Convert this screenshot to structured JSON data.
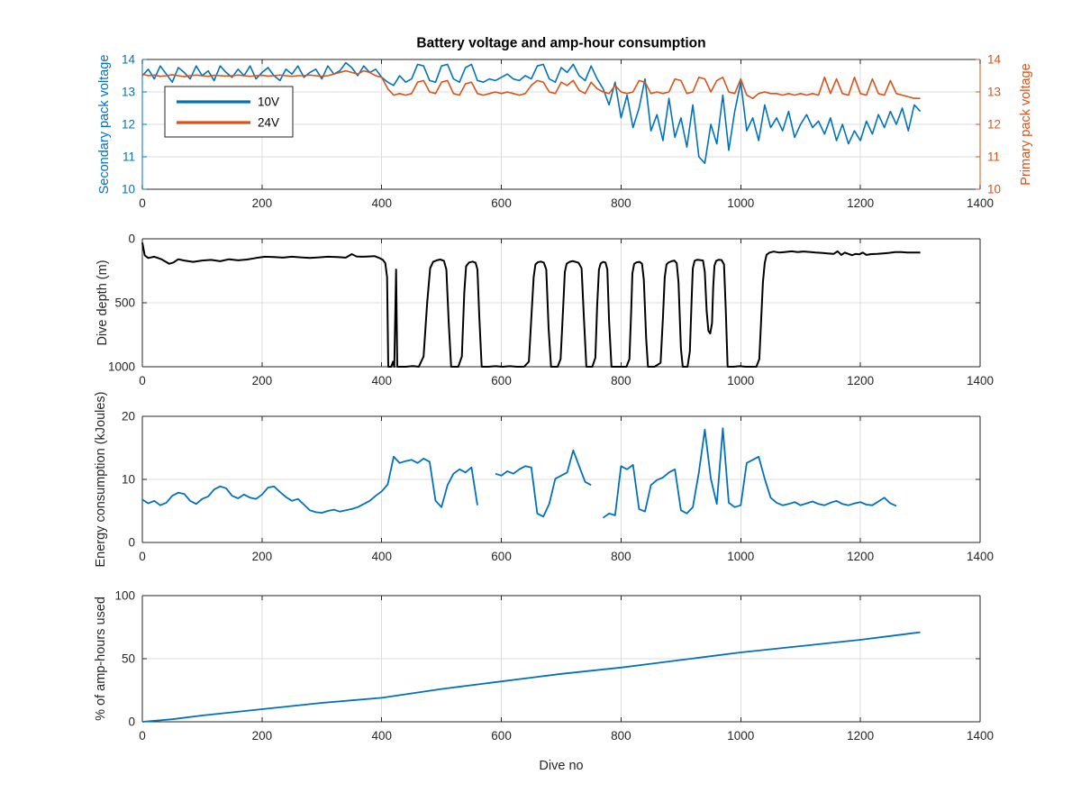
{
  "figure": {
    "title": "Battery voltage and amp-hour consumption",
    "xlabel": "Dive no",
    "background": "#ffffff"
  },
  "palette": {
    "blue": "#0072BD",
    "orange": "#D95319",
    "black": "#000000",
    "axis": "#262626",
    "grid": "#dcdcdc",
    "legend_border": "#262626",
    "legend_bg": "#ffffff"
  },
  "chart_data": [
    {
      "name": "battery-voltage",
      "type": "line",
      "title": "Battery voltage and amp-hour consumption",
      "ylabel_left": "Secondary pack voltage",
      "ylabel_right": "Primary pack voltage",
      "dual_axis": true,
      "xlim": [
        0,
        1400
      ],
      "ylim": [
        10,
        14
      ],
      "xticks": [
        0,
        200,
        400,
        600,
        800,
        1000,
        1200,
        1400
      ],
      "yticks": [
        10,
        11,
        12,
        13,
        14
      ],
      "grid": true,
      "legend_position": "upper-left",
      "legend": [
        {
          "label": "10V",
          "color": "#0072BD"
        },
        {
          "label": "24V",
          "color": "#D95319"
        }
      ],
      "series": [
        {
          "name": "10V",
          "color": "#0072BD",
          "width": 1.6,
          "x_start": 0,
          "x_step": 10,
          "y": [
            13.5,
            13.7,
            13.4,
            13.8,
            13.55,
            13.3,
            13.75,
            13.6,
            13.4,
            13.8,
            13.5,
            13.65,
            13.35,
            13.8,
            13.6,
            13.45,
            13.7,
            13.5,
            13.8,
            13.4,
            13.6,
            13.75,
            13.5,
            13.35,
            13.7,
            13.55,
            13.8,
            13.45,
            13.6,
            13.7,
            13.4,
            13.8,
            13.55,
            13.65,
            13.9,
            13.75,
            13.5,
            13.8,
            13.6,
            13.7,
            13.45,
            13.3,
            13.2,
            13.5,
            13.3,
            13.4,
            13.85,
            13.8,
            13.35,
            13.3,
            13.8,
            13.85,
            13.4,
            13.3,
            13.75,
            13.85,
            13.35,
            13.3,
            13.4,
            13.35,
            13.45,
            13.55,
            13.4,
            13.35,
            13.5,
            13.4,
            13.8,
            13.85,
            13.4,
            13.3,
            13.75,
            13.6,
            13.85,
            13.5,
            13.35,
            13.8,
            13.4,
            13.1,
            12.6,
            13.3,
            12.2,
            12.9,
            11.9,
            12.5,
            13.4,
            11.8,
            12.3,
            11.5,
            12.8,
            11.6,
            12.2,
            11.3,
            12.6,
            11.0,
            10.8,
            12.0,
            11.4,
            12.9,
            11.2,
            12.4,
            13.3,
            11.8,
            12.2,
            11.5,
            12.6,
            11.9,
            12.2,
            11.8,
            12.4,
            11.6,
            12.0,
            12.3,
            11.9,
            12.1,
            11.7,
            12.2,
            11.5,
            12.0,
            11.4,
            11.8,
            11.5,
            12.1,
            11.7,
            12.3,
            11.9,
            12.4,
            12.0,
            12.5,
            11.8,
            12.6,
            12.4
          ]
        },
        {
          "name": "24V",
          "color": "#D95319",
          "width": 1.6,
          "x_start": 0,
          "x_step": 10,
          "y": [
            13.55,
            13.5,
            13.52,
            13.48,
            13.5,
            13.53,
            13.5,
            13.47,
            13.5,
            13.52,
            13.5,
            13.48,
            13.51,
            13.5,
            13.49,
            13.5,
            13.52,
            13.5,
            13.48,
            13.5,
            13.51,
            13.49,
            13.5,
            13.52,
            13.5,
            13.48,
            13.5,
            13.5,
            13.52,
            13.5,
            13.48,
            13.5,
            13.55,
            13.6,
            13.65,
            13.6,
            13.55,
            13.65,
            13.6,
            13.5,
            13.45,
            13.1,
            12.9,
            12.95,
            12.9,
            12.95,
            13.3,
            13.35,
            13.0,
            12.95,
            13.3,
            13.35,
            12.95,
            12.9,
            13.25,
            13.3,
            12.95,
            12.9,
            12.95,
            13.0,
            12.95,
            13.0,
            12.95,
            12.9,
            12.95,
            13.2,
            13.35,
            13.3,
            13.0,
            12.95,
            13.3,
            13.2,
            13.35,
            13.05,
            12.95,
            13.3,
            13.1,
            13.0,
            12.95,
            13.2,
            13.0,
            12.95,
            13.0,
            13.35,
            13.3,
            12.95,
            13.0,
            12.95,
            13.0,
            13.4,
            13.35,
            12.95,
            13.0,
            13.45,
            13.4,
            13.0,
            13.35,
            13.45,
            13.0,
            12.95,
            13.4,
            12.9,
            12.8,
            12.95,
            13.0,
            12.95,
            12.95,
            12.9,
            12.95,
            12.9,
            12.95,
            12.9,
            12.95,
            12.9,
            13.45,
            12.95,
            13.4,
            12.95,
            12.9,
            13.45,
            12.95,
            12.9,
            13.4,
            12.95,
            12.9,
            13.35,
            12.95,
            12.9,
            12.85,
            12.8,
            12.8
          ]
        }
      ]
    },
    {
      "name": "dive-depth",
      "type": "line",
      "ylabel": "Dive depth (m)",
      "ydir": "reverse",
      "xlim": [
        0,
        1400
      ],
      "ylim": [
        0,
        1000
      ],
      "xticks": [
        0,
        200,
        400,
        600,
        800,
        1000,
        1200,
        1400
      ],
      "yticks": [
        0,
        500,
        1000
      ],
      "grid": true,
      "series": [
        {
          "name": "depth",
          "color": "#000000",
          "width": 2,
          "x": [
            0,
            4,
            10,
            20,
            32,
            45,
            52,
            60,
            70,
            85,
            100,
            115,
            130,
            145,
            160,
            175,
            190,
            205,
            220,
            235,
            250,
            265,
            280,
            295,
            310,
            325,
            340,
            350,
            358,
            368,
            378,
            388,
            396,
            402,
            406,
            409,
            411,
            416,
            419,
            421,
            424,
            426,
            430,
            440,
            452,
            462,
            470,
            476,
            481,
            486,
            492,
            498,
            504,
            508,
            512,
            516,
            528,
            534,
            538,
            541,
            546,
            552,
            557,
            560,
            563,
            567,
            578,
            590,
            602,
            614,
            626,
            638,
            646,
            650,
            654,
            657,
            661,
            666,
            671,
            675,
            679,
            683,
            694,
            699,
            703,
            706,
            709,
            714,
            719,
            724,
            729,
            734,
            738,
            742,
            752,
            757,
            760,
            763,
            766,
            770,
            774,
            777,
            780,
            784,
            797,
            809,
            814,
            817,
            819,
            822,
            826,
            831,
            835,
            838,
            842,
            845,
            856,
            866,
            870,
            873,
            876,
            879,
            884,
            889,
            893,
            896,
            900,
            903,
            911,
            915,
            918,
            920,
            923,
            927,
            932,
            937,
            940,
            943,
            946,
            949,
            952,
            954,
            956,
            959,
            963,
            968,
            972,
            975,
            978,
            988,
            998,
            1008,
            1018,
            1026,
            1031,
            1034,
            1037,
            1040,
            1043,
            1048,
            1055,
            1065,
            1075,
            1085,
            1095,
            1105,
            1115,
            1125,
            1135,
            1145,
            1155,
            1162,
            1168,
            1174,
            1180,
            1186,
            1192,
            1198,
            1204,
            1210,
            1218,
            1228,
            1238,
            1248,
            1258,
            1268,
            1278,
            1290,
            1300
          ],
          "y": [
            30,
            130,
            150,
            140,
            160,
            195,
            185,
            160,
            170,
            180,
            170,
            165,
            175,
            160,
            168,
            162,
            150,
            140,
            143,
            147,
            140,
            145,
            150,
            145,
            140,
            143,
            147,
            120,
            138,
            140,
            138,
            135,
            150,
            165,
            190,
            300,
            1000,
            1000,
            960,
            1000,
            240,
            1000,
            1000,
            1000,
            995,
            1000,
            920,
            500,
            230,
            180,
            168,
            162,
            172,
            240,
            650,
            1000,
            1000,
            920,
            420,
            215,
            185,
            178,
            188,
            240,
            600,
            1000,
            1000,
            996,
            1000,
            996,
            1000,
            1000,
            960,
            620,
            300,
            200,
            183,
            178,
            186,
            240,
            700,
            1000,
            1000,
            940,
            560,
            260,
            195,
            180,
            174,
            180,
            188,
            230,
            620,
            1000,
            1000,
            930,
            520,
            240,
            192,
            180,
            186,
            240,
            640,
            1000,
            1000,
            1000,
            940,
            560,
            270,
            196,
            184,
            180,
            195,
            320,
            780,
            1000,
            1000,
            970,
            620,
            300,
            200,
            186,
            176,
            170,
            190,
            340,
            860,
            1000,
            1000,
            880,
            470,
            230,
            172,
            164,
            166,
            170,
            260,
            560,
            720,
            740,
            660,
            380,
            210,
            172,
            164,
            166,
            200,
            560,
            1000,
            1000,
            996,
            1000,
            1000,
            1000,
            940,
            640,
            340,
            190,
            125,
            108,
            100,
            108,
            103,
            98,
            104,
            99,
            103,
            107,
            110,
            114,
            118,
            98,
            126,
            108,
            118,
            128,
            118,
            122,
            108,
            126,
            120,
            118,
            114,
            110,
            104,
            104,
            108,
            108,
            108
          ]
        }
      ]
    },
    {
      "name": "energy-consumption",
      "type": "line",
      "ylabel": "Energy consumption (kJoules)",
      "xlim": [
        0,
        1400
      ],
      "ylim": [
        0,
        20
      ],
      "xticks": [
        0,
        200,
        400,
        600,
        800,
        1000,
        1200,
        1400
      ],
      "yticks": [
        0,
        10,
        20
      ],
      "grid": true,
      "series": [
        {
          "name": "energy",
          "color": "#0072BD",
          "width": 1.8,
          "x_start": 0,
          "x_step": 10,
          "y": [
            6.8,
            6.2,
            6.6,
            5.9,
            6.3,
            7.4,
            7.9,
            7.7,
            6.6,
            6.1,
            6.9,
            7.3,
            8.4,
            8.9,
            8.6,
            7.4,
            7.0,
            7.6,
            7.1,
            6.9,
            7.6,
            8.7,
            8.9,
            8.0,
            7.2,
            6.6,
            6.9,
            6.0,
            5.1,
            4.8,
            4.7,
            5.0,
            5.2,
            4.9,
            5.1,
            5.3,
            5.6,
            6.1,
            6.6,
            7.4,
            8.1,
            9.2,
            13.6,
            12.6,
            12.9,
            13.1,
            12.6,
            13.3,
            12.8,
            6.6,
            5.6,
            9.1,
            10.9,
            11.6,
            11.1,
            11.9,
            5.9,
            null,
            null,
            10.9,
            10.6,
            11.3,
            10.9,
            11.6,
            12.1,
            11.9,
            4.6,
            4.1,
            6.1,
            10.1,
            10.6,
            11.1,
            14.6,
            12.1,
            9.6,
            9.1,
            null,
            3.9,
            4.6,
            4.3,
            12.1,
            11.6,
            12.3,
            5.3,
            4.9,
            9.1,
            9.9,
            10.3,
            11.1,
            11.6,
            5.1,
            4.6,
            5.6,
            11.1,
            17.9,
            10.1,
            6.1,
            18.1,
            6.3,
            5.6,
            5.9,
            12.6,
            13.1,
            13.6,
            10.1,
            7.1,
            6.3,
            5.9,
            6.1,
            6.4,
            5.9,
            6.2,
            6.5,
            6.1,
            5.9,
            6.3,
            6.6,
            6.1,
            5.9,
            6.2,
            6.4,
            6.0,
            5.9,
            6.5,
            7.1,
            6.2,
            5.8,
            null,
            6.1,
            null,
            6.2
          ]
        }
      ]
    },
    {
      "name": "amp-hours-used",
      "type": "line",
      "ylabel": "% of amp-hours used",
      "xlabel": "Dive no",
      "xlim": [
        0,
        1400
      ],
      "ylim": [
        0,
        100
      ],
      "xticks": [
        0,
        200,
        400,
        600,
        800,
        1000,
        1200,
        1400
      ],
      "yticks": [
        0,
        50,
        100
      ],
      "grid": true,
      "series": [
        {
          "name": "pct-amp-hours",
          "color": "#0072BD",
          "width": 1.8,
          "x": [
            0,
            50,
            100,
            150,
            200,
            250,
            300,
            350,
            400,
            450,
            500,
            550,
            600,
            650,
            700,
            750,
            800,
            850,
            900,
            950,
            1000,
            1050,
            1100,
            1150,
            1200,
            1250,
            1300
          ],
          "y": [
            0,
            2,
            5,
            7.5,
            10,
            12.5,
            15,
            17,
            19,
            22.5,
            26,
            29,
            32,
            35,
            38,
            40.5,
            43,
            46,
            49,
            52,
            55,
            57.5,
            60,
            62.5,
            65,
            68,
            71
          ]
        }
      ]
    }
  ]
}
